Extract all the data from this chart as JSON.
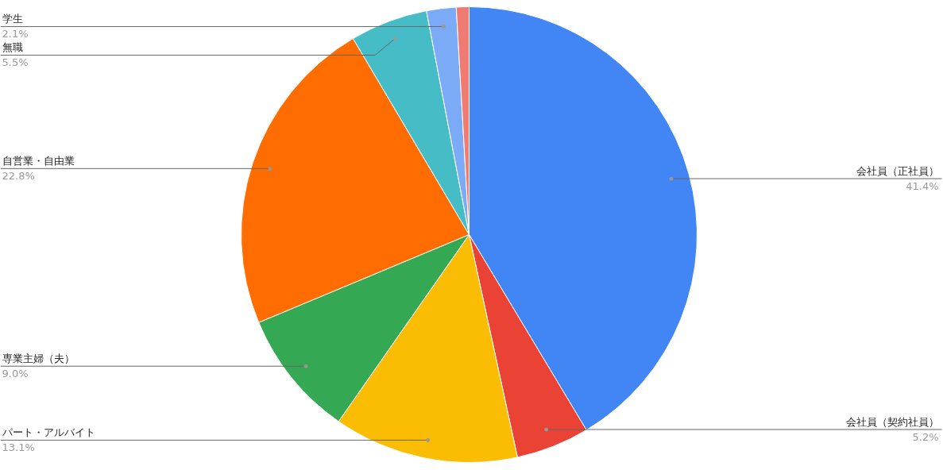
{
  "chart_data": {
    "type": "pie",
    "categories": [
      "会社員（正社員）",
      "会社員（契約社員）",
      "パート・アルバイト",
      "専業主婦（夫）",
      "自営業・自由業",
      "無職",
      "学生",
      null
    ],
    "values": [
      41.4,
      5.2,
      13.1,
      9.0,
      22.8,
      5.5,
      2.1,
      0.9
    ],
    "value_labels": [
      "41.4%",
      "5.2%",
      "13.1%",
      "9.0%",
      "22.8%",
      "5.5%",
      "2.1%",
      null
    ],
    "colors": [
      "#4285f4",
      "#ea4335",
      "#fbbc04",
      "#34a853",
      "#ff6d01",
      "#46bdc6",
      "#7baaf7",
      "#f07b72"
    ]
  }
}
